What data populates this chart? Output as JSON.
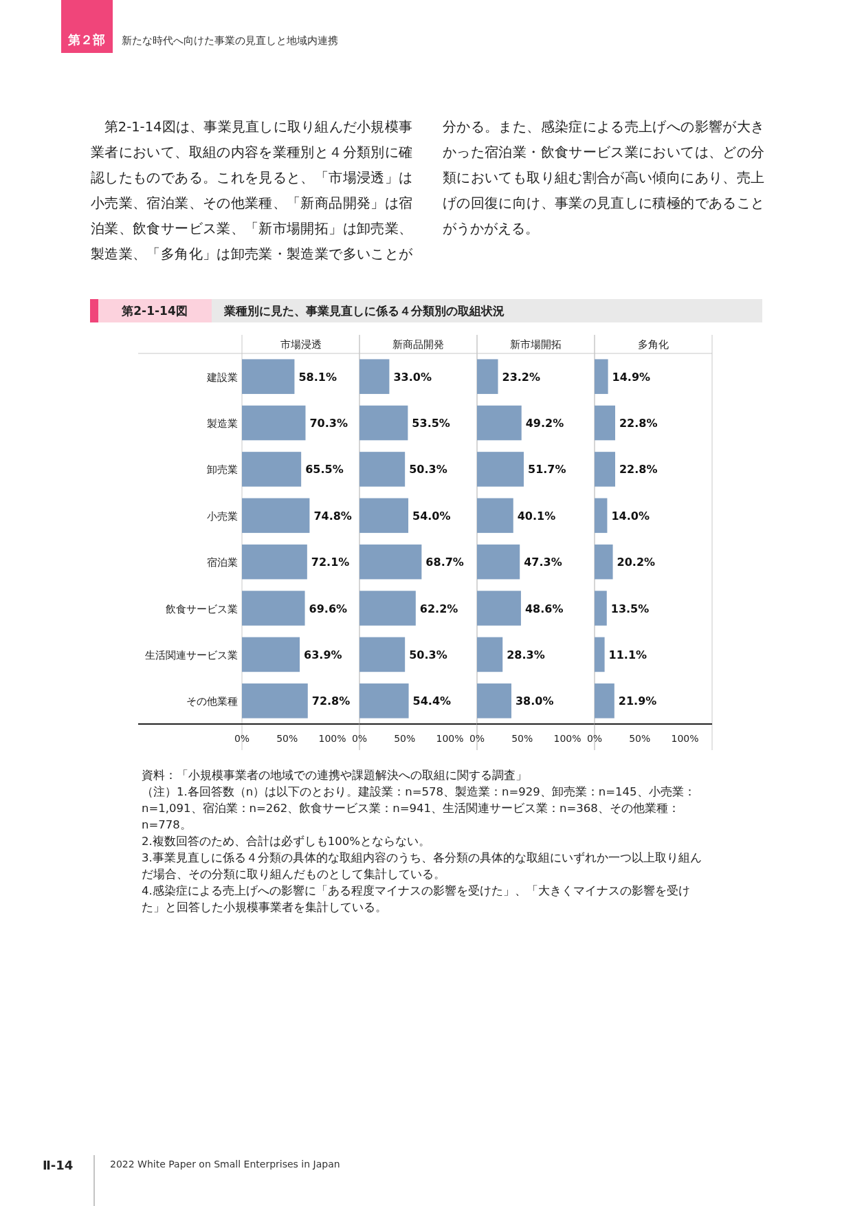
{
  "chart_data": [
    {
      "type": "bar",
      "orientation": "horizontal",
      "title": "市場浸透",
      "color": "#819fc1",
      "categories": [
        "建設業",
        "製造業",
        "卸売業",
        "小売業",
        "宿泊業",
        "飲食サービス業",
        "生活関連サービス業",
        "その他業種"
      ],
      "values": [
        58.1,
        70.3,
        65.5,
        74.8,
        72.1,
        69.6,
        63.9,
        72.8
      ],
      "value_labels": [
        "58.1%",
        "70.3%",
        "65.5%",
        "74.8%",
        "72.1%",
        "69.6%",
        "63.9%",
        "72.8%"
      ],
      "xlim": [
        0,
        130
      ],
      "xticks": [
        {
          "value": 0,
          "label": "0%"
        },
        {
          "value": 50,
          "label": "50%"
        },
        {
          "value": 100,
          "label": "100%"
        }
      ],
      "annotations": [
        "第２部",
        "新たな時代へ向けた事業の見直しと地域内連携",
        "第2-1-14図は、事業見直しに取り組んだ小規模事業者において、取組の内容を業種別と４分類別に確認したものである。これを見ると、「市場浸透」は小売業、宿泊業、その他業種、「新商品開発」は宿泊業、飲食サービス業、「新市場開拓」は卸売業、製造業、「多角化」は卸売業・製造業で多いことが分かる。また、感染症による売上げへの影響が大きかった宿泊業・飲食サービス業においては、どの分類においても取り組む割合が高い傾向にあり、売上げの回復に向け、事業の見直しに積極的であることがうかがえる。",
        "第2-1-14図",
        "業種別に見た、事業見直しに係る４分類別の取組状況",
        "資料：「小規模事業者の地域での連携や課題解決への取組に関する調査」",
        "（注）1.各回答数（n）は以下のとおり。建設業：n=578、製造業：n=929、卸売業：n=145、小売業：n=1,091、宿泊業：n=262、飲食サービス業：n=941、生活関連サービス業：n=368、その他業種：n=778。",
        "2.複数回答のため、合計は必ずしも100%とならない。",
        "3.事業見直しに係る４分類の具体的な取組内容のうち、各分類の具体的な取組にいずれか一つ以上取り組んだ場合、その分類に取り組んだものとして集計している。",
        "4.感染症による売上げへの影響に「ある程度マイナスの影響を受けた」、「大きくマイナスの影響を受けた」と回答した小規模事業者を集計している。",
        "Ⅱ-14",
        "2022 White Paper on Small Enterprises in Japan"
      ]
    },
    {
      "type": "bar",
      "orientation": "horizontal",
      "title": "新商品開発",
      "color": "#819fc1",
      "values": [
        33.0,
        53.5,
        50.3,
        54.0,
        68.7,
        62.2,
        50.3,
        54.4
      ],
      "value_labels": [
        "33.0%",
        "53.5%",
        "50.3%",
        "54.0%",
        "68.7%",
        "62.2%",
        "50.3%",
        "54.4%"
      ],
      "xlim": [
        0,
        130
      ],
      "xticks": [
        {
          "value": 0,
          "label": "0%"
        },
        {
          "value": 50,
          "label": "50%"
        },
        {
          "value": 100,
          "label": "100%"
        }
      ],
      "tick_labels": "x"
    },
    {
      "type": "bar",
      "orientation": "horizontal",
      "title": "新市場開拓",
      "color": "#819fc1",
      "values": [
        23.2,
        49.2,
        51.7,
        40.1,
        47.3,
        48.6,
        28.3,
        38.0
      ],
      "value_labels": [
        "23.2%",
        "49.2%",
        "51.7%",
        "40.1%",
        "47.3%",
        "48.6%",
        "28.3%",
        "38.0%"
      ],
      "xlim": [
        0,
        130
      ],
      "xticks": [
        {
          "value": 0,
          "label": "0%"
        },
        {
          "value": 50,
          "label": "50%"
        },
        {
          "value": 100,
          "label": "100%"
        }
      ],
      "tick_labels": "x"
    },
    {
      "type": "bar",
      "orientation": "horizontal",
      "title": "多角化",
      "color": "#819fc1",
      "values": [
        14.9,
        22.8,
        22.8,
        14.0,
        20.2,
        13.5,
        11.1,
        21.9
      ],
      "value_labels": [
        "14.9%",
        "22.8%",
        "22.8%",
        "14.0%",
        "20.2%",
        "13.5%",
        "11.1%",
        "21.9%"
      ],
      "xlim": [
        0,
        130
      ],
      "xticks": [
        {
          "value": 0,
          "label": "0%"
        },
        {
          "value": 50,
          "label": "50%"
        },
        {
          "value": 100,
          "label": "100%"
        }
      ],
      "tick_labels": "x"
    }
  ]
}
